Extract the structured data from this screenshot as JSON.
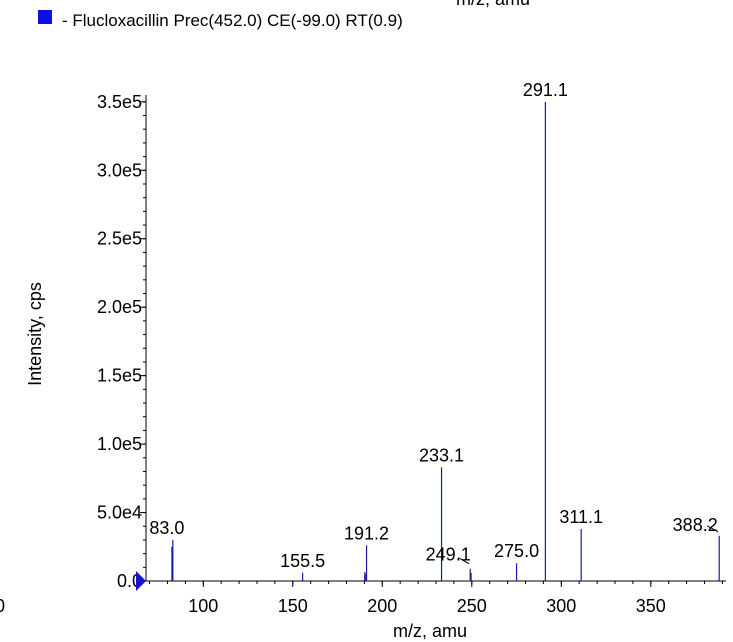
{
  "chart_data": {
    "type": "bar",
    "top_clipped_label": "m/z, amu",
    "legend": {
      "marker_color": "#0b10e8",
      "text": "- Flucloxacillin Prec(452.0) CE(-99.0) RT(0.9)"
    },
    "xlabel": "m/z, amu",
    "ylabel": "Intensity, cps",
    "xlim": [
      68,
      392
    ],
    "ylim": [
      0,
      355000
    ],
    "x_ticks": [
      100,
      150,
      200,
      250,
      300,
      350
    ],
    "y_ticks": [
      0,
      50000,
      100000,
      150000,
      200000,
      250000,
      300000,
      350000
    ],
    "y_tick_labels": [
      "0.0",
      "5.0e4",
      "1.0e5",
      "1.5e5",
      "2.0e5",
      "2.5e5",
      "3.0e5",
      "3.5e5"
    ],
    "x_edge_label": "0",
    "line_color": "#1a1aa8",
    "peaks": [
      {
        "x": 82.5,
        "y": 25000
      },
      {
        "x": 83.0,
        "y": 30000,
        "label": "83.0"
      },
      {
        "x": 155.5,
        "y": 6000,
        "label": "155.5"
      },
      {
        "x": 190.2,
        "y": 6500
      },
      {
        "x": 190.8,
        "y": 5000
      },
      {
        "x": 191.2,
        "y": 26000,
        "label": "191.2"
      },
      {
        "x": 233.1,
        "y": 83000,
        "label": "233.1"
      },
      {
        "x": 249.1,
        "y": 9000,
        "label": "249.1"
      },
      {
        "x": 249.6,
        "y": 6000
      },
      {
        "x": 275.0,
        "y": 13000,
        "label": "275.0"
      },
      {
        "x": 291.1,
        "y": 350000,
        "label": "291.1"
      },
      {
        "x": 311.1,
        "y": 38000,
        "label": "311.1"
      },
      {
        "x": 388.2,
        "y": 33000,
        "label": "388.2"
      }
    ]
  }
}
